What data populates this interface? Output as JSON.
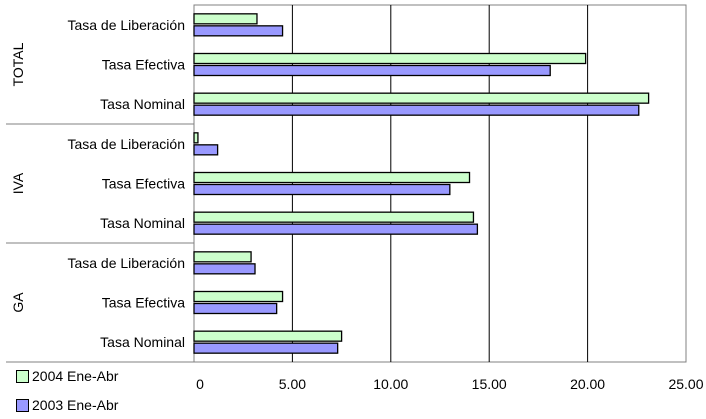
{
  "chart_data": {
    "type": "bar",
    "orientation": "horizontal",
    "groups": [
      {
        "name": "TOTAL",
        "categories": [
          "Tasa de Liberación",
          "Tasa Efectiva",
          "Tasa Nominal"
        ]
      },
      {
        "name": "IVA",
        "categories": [
          "Tasa de Liberación",
          "Tasa Efectiva",
          "Tasa Nominal"
        ]
      },
      {
        "name": "GA",
        "categories": [
          "Tasa de Liberación",
          "Tasa Efectiva",
          "Tasa Nominal"
        ]
      }
    ],
    "series": [
      {
        "name": "2004 Ene-Abr",
        "color": "#ccffcc",
        "values": [
          3.2,
          19.9,
          23.1,
          0.2,
          14.0,
          14.2,
          2.9,
          4.5,
          7.5
        ]
      },
      {
        "name": "2003 Ene-Abr",
        "color": "#9999ff",
        "values": [
          4.5,
          18.1,
          22.6,
          1.2,
          13.0,
          14.4,
          3.1,
          4.2,
          7.3
        ]
      }
    ],
    "xlim": [
      0,
      25
    ],
    "xticks": [
      "0",
      "5.00",
      "10.00",
      "15.00",
      "20.00",
      "25.00"
    ],
    "grid": true,
    "legend_position": "bottom-left"
  }
}
